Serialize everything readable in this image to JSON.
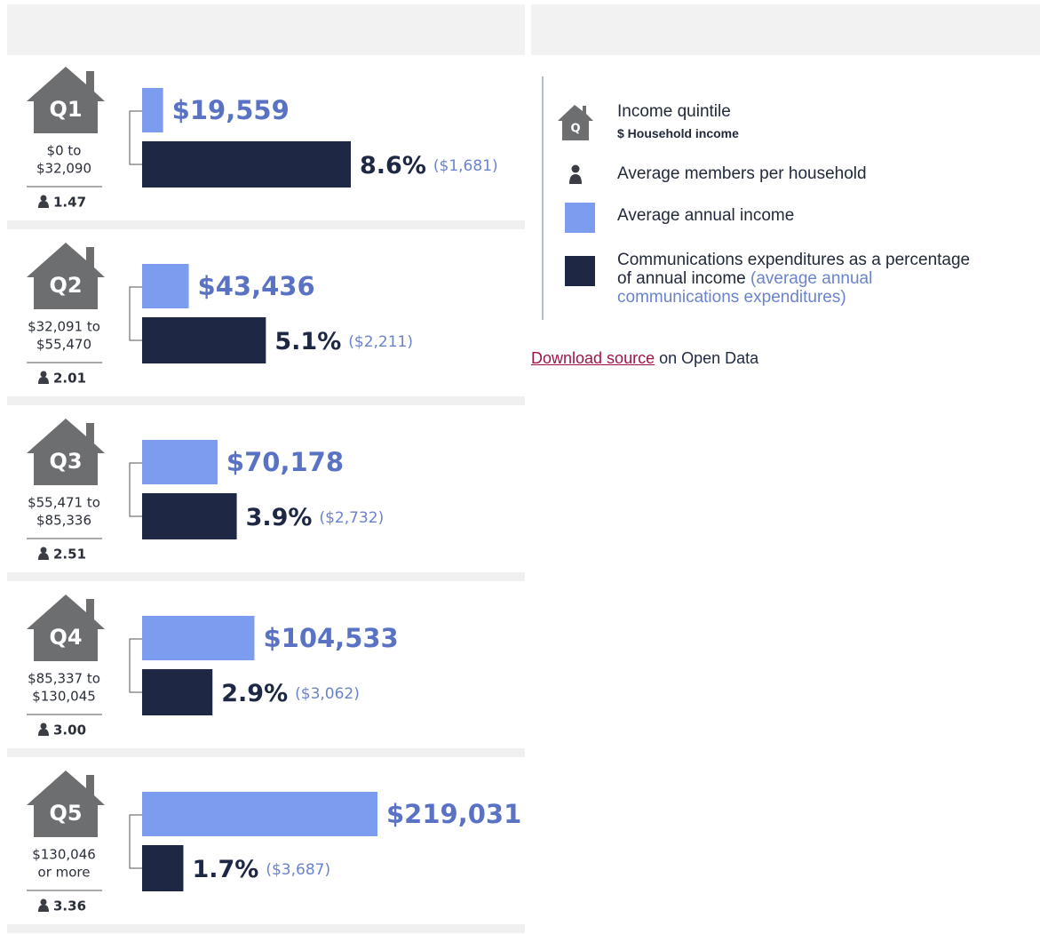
{
  "chart_data": {
    "type": "bar",
    "categories": [
      "Q1",
      "Q2",
      "Q3",
      "Q4",
      "Q5"
    ],
    "ranges": [
      [
        "$0 to",
        "$32,090"
      ],
      [
        "$32,091 to",
        "$55,470"
      ],
      [
        "$55,471 to",
        "$85,336"
      ],
      [
        "$85,337 to",
        "$130,045"
      ],
      [
        "$130,046",
        "or more"
      ]
    ],
    "members": {
      "values": [
        1.47,
        2.01,
        2.51,
        3.0,
        3.36
      ],
      "value_labels": [
        "1.47",
        "2.01",
        "2.51",
        "3.00",
        "3.36"
      ]
    },
    "series": [
      {
        "name": "Average annual income",
        "color": "#7c9cf0",
        "values": [
          19559,
          43436,
          70178,
          104533,
          219031
        ],
        "value_labels": [
          "$19,559",
          "$43,436",
          "$70,178",
          "$104,533",
          "$219,031"
        ]
      },
      {
        "name": "Communications expenditures as a percentage of annual income",
        "color": "#1e2844",
        "values": [
          8.6,
          5.1,
          3.9,
          2.9,
          1.7
        ],
        "value_labels": [
          "8.6%",
          "5.1%",
          "3.9%",
          "2.9%",
          "1.7%"
        ]
      }
    ],
    "expenditures": {
      "name": "(average annual communications expenditures)",
      "values": [
        1681,
        2211,
        2732,
        3062,
        3687
      ],
      "value_labels": [
        "($1,681)",
        "($2,211)",
        "($2,732)",
        "($3,062)",
        "($3,687)"
      ]
    },
    "legend": {
      "icon": "Q",
      "quintile": "Income quintile",
      "income": "$ Household income",
      "members": "Average members per household"
    }
  },
  "footer": {
    "link": "Download source",
    "text": "on Open Data"
  }
}
